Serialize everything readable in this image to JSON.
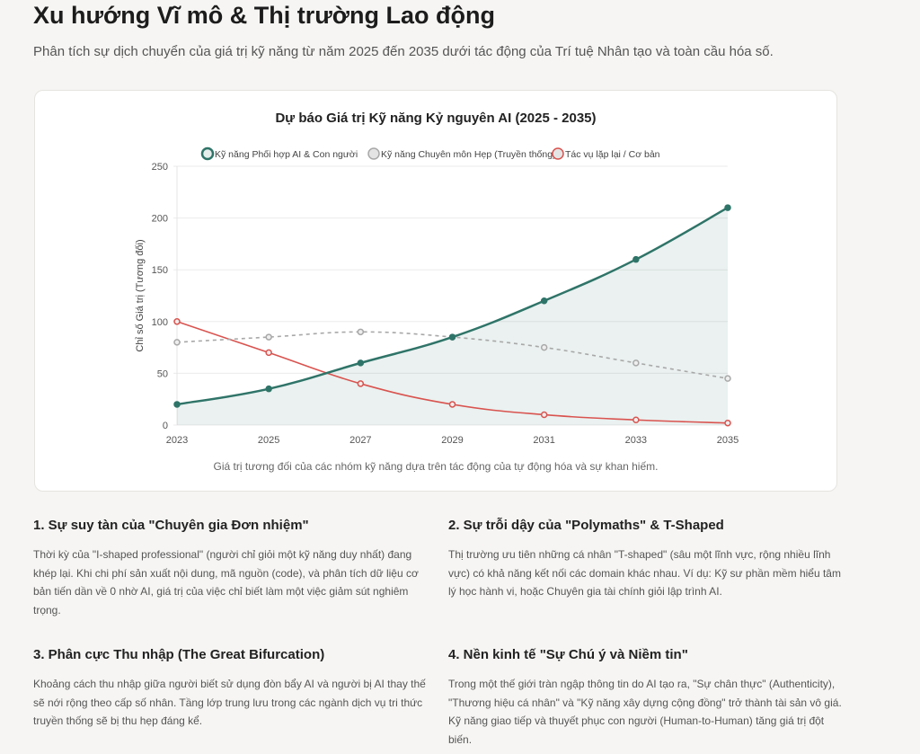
{
  "header": {
    "title": "Xu hướng Vĩ mô & Thị trường Lao động",
    "subtitle": "Phân tích sự dịch chuyển của giá trị kỹ năng từ năm 2025 đến 2035 dưới tác động của Trí tuệ Nhân tạo và toàn cầu hóa số."
  },
  "chart_data": {
    "type": "line",
    "title": "Dự báo Giá trị Kỹ năng Kỷ nguyên AI (2025 - 2035)",
    "xlabel": "",
    "ylabel": "Chỉ số Giá trị (Tương đối)",
    "x": [
      "2023",
      "2025",
      "2027",
      "2029",
      "2031",
      "2033",
      "2035"
    ],
    "ylim": [
      0,
      250
    ],
    "yticks": [
      "0",
      "50",
      "100",
      "150",
      "200",
      "250"
    ],
    "legend_position": "top",
    "series": [
      {
        "name": "Kỹ năng Phối hợp AI & Con người",
        "values": [
          20,
          35,
          60,
          85,
          120,
          160,
          210
        ],
        "color": "#2f7468",
        "fill": true,
        "dashed": false
      },
      {
        "name": "Kỹ năng Chuyên môn Hẹp (Truyền thống)",
        "values": [
          80,
          85,
          90,
          85,
          75,
          60,
          45
        ],
        "color": "#a8a8a8",
        "fill": false,
        "dashed": true
      },
      {
        "name": "Tác vụ lặp lại / Cơ bản",
        "values": [
          100,
          70,
          40,
          20,
          10,
          5,
          2
        ],
        "color": "#d9534f",
        "fill": false,
        "dashed": false
      }
    ],
    "caption": "Giá trị tương đối của các nhóm kỹ năng dựa trên tác động của tự động hóa và sự khan hiếm."
  },
  "sections": [
    {
      "title": "1. Sự suy tàn của \"Chuyên gia Đơn nhiệm\"",
      "body": "Thời kỳ của \"I-shaped professional\" (người chỉ giỏi một kỹ năng duy nhất) đang khép lại. Khi chi phí sản xuất nội dung, mã nguồn (code), và phân tích dữ liệu cơ bản tiến dần về 0 nhờ AI, giá trị của việc chỉ biết làm một việc giảm sút nghiêm trọng."
    },
    {
      "title": "2. Sự trỗi dậy của \"Polymaths\" & T-Shaped",
      "body": "Thị trường ưu tiên những cá nhân \"T-shaped\" (sâu một lĩnh vực, rộng nhiều lĩnh vực) có khả năng kết nối các domain khác nhau. Ví dụ: Kỹ sư phần mềm hiểu tâm lý học hành vi, hoặc Chuyên gia tài chính giỏi lập trình AI."
    },
    {
      "title": "3. Phân cực Thu nhập (The Great Bifurcation)",
      "body": "Khoảng cách thu nhập giữa người biết sử dụng đòn bẩy AI và người bị AI thay thế sẽ nới rộng theo cấp số nhân. Tầng lớp trung lưu trong các ngành dịch vụ tri thức truyền thống sẽ bị thu hẹp đáng kể."
    },
    {
      "title": "4. Nền kinh tế \"Sự Chú ý và Niềm tin\"",
      "body": "Trong một thế giới tràn ngập thông tin do AI tạo ra, \"Sự chân thực\" (Authenticity), \"Thương hiệu cá nhân\" và \"Kỹ năng xây dựng cộng đồng\" trở thành tài sản vô giá. Kỹ năng giao tiếp và thuyết phục con người (Human-to-Human) tăng giá trị đột biến."
    }
  ]
}
